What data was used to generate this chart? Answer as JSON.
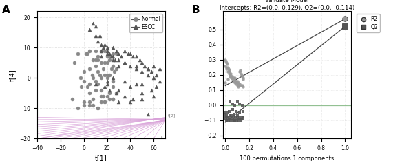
{
  "panel_A": {
    "xlabel": "t[1]",
    "ylabel": "t[4]",
    "xlim": [
      -40,
      70
    ],
    "ylim": [
      -20,
      22
    ],
    "xticks": [
      -40,
      -20,
      0,
      20,
      40,
      60
    ],
    "yticks": [
      -20,
      -10,
      0,
      10,
      20
    ],
    "normal_x": [
      -8,
      -5,
      -3,
      0,
      2,
      5,
      5,
      7,
      8,
      10,
      10,
      12,
      12,
      14,
      15,
      15,
      17,
      18,
      18,
      20,
      20,
      22,
      22,
      24,
      25,
      25,
      26,
      28,
      28,
      0,
      3,
      5,
      8,
      10,
      12,
      15,
      17,
      20,
      22,
      25,
      28,
      -2,
      5,
      10,
      15,
      20,
      25,
      0,
      8,
      12,
      18,
      22,
      -5,
      5,
      12,
      18,
      25,
      10,
      20,
      -10,
      0,
      5,
      15,
      25,
      8,
      18,
      12,
      22,
      3,
      15
    ],
    "normal_y": [
      5,
      8,
      0,
      2,
      8,
      3,
      9,
      1,
      6,
      4,
      9,
      2,
      7,
      1,
      5,
      9,
      3,
      5,
      9,
      0,
      5,
      1,
      6,
      3,
      4,
      8,
      2,
      3,
      8,
      -1,
      -3,
      -5,
      -7,
      -4,
      -2,
      -4,
      -6,
      -6,
      -5,
      -3,
      -5,
      -3,
      -2,
      -1,
      0,
      1,
      -1,
      -8,
      -9,
      -10,
      -8,
      -7,
      -10,
      -9,
      -10,
      -8,
      -7,
      6,
      7,
      -7,
      -9,
      -8,
      -8,
      -7,
      0,
      1,
      6,
      7,
      8,
      -6
    ],
    "escc_x": [
      5,
      8,
      10,
      12,
      14,
      15,
      17,
      18,
      20,
      22,
      24,
      25,
      27,
      28,
      30,
      32,
      35,
      38,
      40,
      42,
      45,
      48,
      50,
      52,
      55,
      58,
      60,
      62,
      65,
      15,
      20,
      25,
      30,
      35,
      40,
      45,
      50,
      55,
      60,
      18,
      22,
      28,
      35,
      42,
      50,
      58,
      62,
      10,
      20,
      30,
      40,
      50,
      60,
      15,
      25,
      35,
      45,
      55,
      20,
      30,
      40,
      50,
      25,
      35,
      45,
      55,
      10,
      20,
      30,
      65
    ],
    "escc_y": [
      16,
      18,
      17,
      12,
      14,
      11,
      10,
      11,
      9,
      8,
      7,
      10,
      6,
      9,
      8,
      7,
      9,
      8,
      8,
      7,
      7,
      6,
      5,
      4,
      3,
      2,
      4,
      1,
      3,
      9,
      8,
      7,
      6,
      5,
      4,
      3,
      2,
      1,
      0,
      -3,
      -4,
      -5,
      -6,
      -7,
      -5,
      -4,
      -3,
      -2,
      -1,
      -8,
      -8,
      -7,
      -6,
      7,
      6,
      5,
      4,
      3,
      -2,
      -4,
      -3,
      -2,
      0,
      -1,
      -2,
      -12,
      14,
      10,
      4,
      -1
    ],
    "normal_color": "#888888",
    "escc_color": "#555555",
    "grid_color": "#cccccc",
    "floor_color": "#d8a0d8",
    "bg_color": "#ffffff",
    "legend_line_color": "#555555"
  },
  "panel_B": {
    "title": "Validate Model",
    "subtitle": "Intercepts: R2=(0.0, 0.129), Q2=(0.0, -0.114)",
    "xlabel": "100 permutations 1 components",
    "xlim": [
      -0.02,
      1.05
    ],
    "ylim": [
      -0.22,
      0.62
    ],
    "xticks": [
      0.0,
      0.2,
      0.4,
      0.6,
      0.8,
      1.0
    ],
    "yticks": [
      -0.2,
      -0.1,
      0.0,
      0.1,
      0.2,
      0.3,
      0.4,
      0.5
    ],
    "r2_scatter_x": [
      0.0,
      0.005,
      0.01,
      0.015,
      0.02,
      0.025,
      0.03,
      0.035,
      0.04,
      0.045,
      0.05,
      0.055,
      0.06,
      0.065,
      0.07,
      0.075,
      0.08,
      0.085,
      0.09,
      0.095,
      0.1,
      0.105,
      0.11,
      0.115,
      0.12,
      0.125,
      0.13,
      0.135,
      0.14,
      0.145,
      0.15,
      0.0,
      0.01,
      0.02,
      0.03,
      0.04,
      0.05,
      0.07,
      0.09,
      0.11,
      0.13,
      0.15,
      0.0,
      0.02,
      0.05,
      0.08,
      0.1,
      0.12,
      0.14,
      0.01
    ],
    "r2_scatter_y": [
      0.3,
      0.29,
      0.28,
      0.27,
      0.25,
      0.24,
      0.22,
      0.23,
      0.2,
      0.21,
      0.18,
      0.19,
      0.17,
      0.18,
      0.16,
      0.17,
      0.15,
      0.16,
      0.14,
      0.15,
      0.13,
      0.14,
      0.12,
      0.13,
      0.22,
      0.23,
      0.21,
      0.2,
      0.19,
      0.18,
      0.17,
      0.26,
      0.24,
      0.22,
      0.21,
      0.19,
      0.18,
      0.17,
      0.16,
      0.15,
      0.13,
      0.12,
      0.15,
      0.17,
      0.19,
      0.18,
      0.16,
      0.14,
      0.13,
      0.25
    ],
    "q2_scatter_x": [
      0.0,
      0.005,
      0.01,
      0.015,
      0.02,
      0.025,
      0.03,
      0.035,
      0.04,
      0.045,
      0.05,
      0.055,
      0.06,
      0.065,
      0.07,
      0.075,
      0.08,
      0.085,
      0.09,
      0.095,
      0.1,
      0.105,
      0.11,
      0.115,
      0.12,
      0.125,
      0.13,
      0.135,
      0.14,
      0.145,
      0.15,
      0.0,
      0.01,
      0.02,
      0.04,
      0.06,
      0.08,
      0.1,
      0.12,
      0.14,
      0.0,
      0.03,
      0.06,
      0.09,
      0.12,
      0.15,
      0.01,
      0.04,
      0.07,
      0.1
    ],
    "q2_scatter_y": [
      -0.08,
      -0.09,
      -0.1,
      -0.09,
      -0.08,
      -0.1,
      -0.09,
      -0.08,
      -0.09,
      -0.1,
      -0.07,
      -0.08,
      -0.09,
      -0.1,
      -0.08,
      -0.09,
      -0.1,
      -0.08,
      -0.09,
      -0.1,
      -0.08,
      -0.09,
      -0.1,
      -0.09,
      -0.08,
      -0.09,
      -0.1,
      -0.09,
      -0.08,
      -0.09,
      -0.08,
      -0.06,
      -0.07,
      -0.05,
      0.02,
      0.01,
      0.0,
      0.02,
      0.01,
      0.0,
      -0.05,
      -0.04,
      -0.03,
      -0.04,
      -0.05,
      -0.04,
      -0.08,
      -0.07,
      -0.06,
      -0.07
    ],
    "r2_end_x": 1.0,
    "r2_end_y": 0.57,
    "q2_end_x": 1.0,
    "q2_end_y": 0.52,
    "r2_start_x": 0.0,
    "r2_start_y": 0.129,
    "q2_start_x": 0.0,
    "q2_start_y": -0.114,
    "scatter_r2_color": "#999999",
    "scatter_q2_color": "#555555",
    "line_color": "#444444",
    "zero_line_color": "#88bb88",
    "grid_color": "#dddddd",
    "bg_color": "#ffffff",
    "legend_r2_color": "#999999",
    "legend_q2_color": "#555555"
  }
}
